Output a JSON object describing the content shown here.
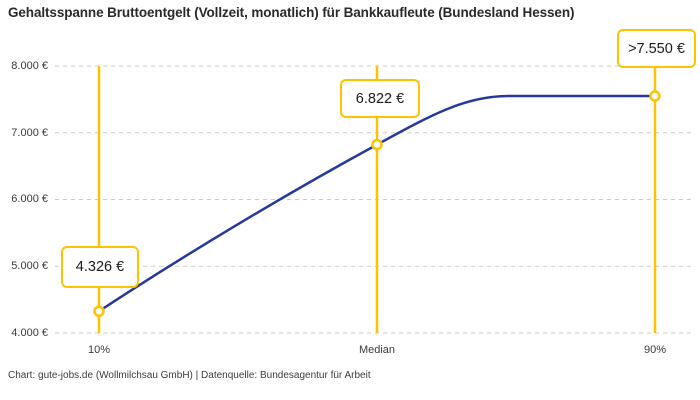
{
  "chart_data": {
    "type": "line",
    "title": "Gehaltsspanne Bruttoentgelt (Vollzeit, monatlich) für Bankkaufleute (Bundesland Hessen)",
    "attribution": "Chart: gute-jobs.de (Wollmilchsau GmbH) | Datenquelle: Bundesagentur für Arbeit",
    "categories": [
      "10%",
      "Median",
      "90%"
    ],
    "values": [
      4326,
      6822,
      7550
    ],
    "point_labels": [
      "4.326 €",
      "6.822 €",
      ">7.550 €"
    ],
    "y_ticks": [
      8000,
      7000,
      6000,
      5000,
      4000
    ],
    "y_tick_labels": [
      "8.000 €",
      "7.000 €",
      "6.000 €",
      "5.000 €",
      "4.000 €"
    ],
    "ylim": [
      4000,
      8000
    ],
    "xlabel": "",
    "ylabel": "",
    "grid": "horizontal-dashed",
    "legend": "none",
    "curve_shape": "smooth rise from 10% point, plateaus at 7550 before the 90% marker",
    "colors": {
      "line": "#24399B",
      "marker": "#FDC300",
      "grid": "#CBCBCB",
      "background": "#FFFFFF",
      "text": "#2A2A2A"
    }
  }
}
